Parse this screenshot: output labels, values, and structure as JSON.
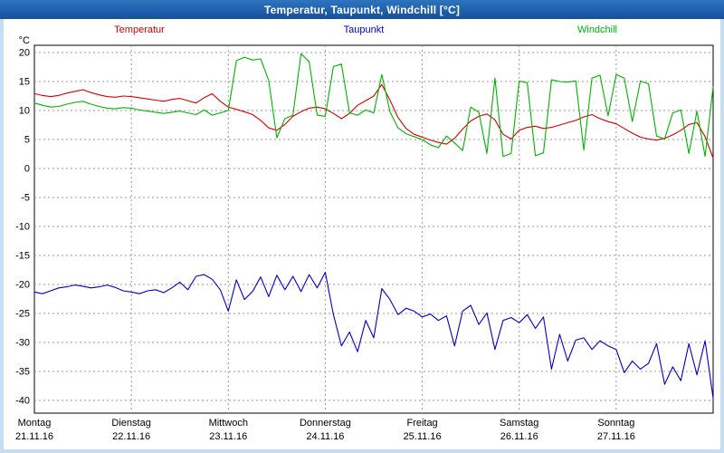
{
  "window": {
    "title": "Temperatur, Taupunkt, Windchill [°C]"
  },
  "colors": {
    "frame_background": "#c6dcf0",
    "titlebar_blue": "#1a5fae",
    "plot_background": "#ffffff",
    "grid_gray": "#989898",
    "temperatur_red": "#d40000",
    "taupunkt_blue": "#0000c8",
    "windchill_green": "#00b400"
  },
  "chart_data": {
    "type": "line",
    "title": "Temperatur, Taupunkt, Windchill [°C]",
    "ylabel": "°C",
    "ylim": [
      -40,
      20
    ],
    "ytick_step": 5,
    "grid": "dashed",
    "legend_position": "top",
    "x_unit_hours": 2,
    "x_range_days": 7,
    "x_days": [
      {
        "name": "Montag",
        "date": "21.11.16"
      },
      {
        "name": "Dienstag",
        "date": "22.11.16"
      },
      {
        "name": "Mittwoch",
        "date": "23.11.16"
      },
      {
        "name": "Donnerstag",
        "date": "24.11.16"
      },
      {
        "name": "Freitag",
        "date": "25.11.16"
      },
      {
        "name": "Samstag",
        "date": "26.11.16"
      },
      {
        "name": "Sonntag",
        "date": "27.11.16"
      }
    ],
    "series": [
      {
        "name": "Temperatur",
        "color": "#d40000",
        "values": [
          12.9,
          12.6,
          12.4,
          12.6,
          13.0,
          13.3,
          13.6,
          13.1,
          12.7,
          12.4,
          12.3,
          12.5,
          12.4,
          12.2,
          12.0,
          11.8,
          11.6,
          11.9,
          12.1,
          11.7,
          11.3,
          12.2,
          12.9,
          11.6,
          10.6,
          10.2,
          9.8,
          9.3,
          8.3,
          7.0,
          6.6,
          7.6,
          9.0,
          9.8,
          10.4,
          10.6,
          10.3,
          9.5,
          8.6,
          9.5,
          10.9,
          11.7,
          12.5,
          14.5,
          11.8,
          8.8,
          6.9,
          5.9,
          5.4,
          4.9,
          4.5,
          4.2,
          5.2,
          6.8,
          8.2,
          9.0,
          9.4,
          8.4,
          5.9,
          5.1,
          6.6,
          7.1,
          7.3,
          6.9,
          7.1,
          7.5,
          7.9,
          8.3,
          8.9,
          9.3,
          8.6,
          8.1,
          7.7,
          6.9,
          6.1,
          5.4,
          5.1,
          4.9,
          5.2,
          5.8,
          6.6,
          7.6,
          7.9,
          5.5,
          1.8
        ]
      },
      {
        "name": "Taupunkt",
        "color": "#0000c8",
        "values": [
          -21.3,
          -21.6,
          -21.1,
          -20.6,
          -20.4,
          -20.1,
          -20.3,
          -20.6,
          -20.4,
          -20.1,
          -20.5,
          -21.1,
          -21.3,
          -21.6,
          -21.1,
          -20.9,
          -21.4,
          -20.6,
          -19.6,
          -20.9,
          -18.6,
          -18.3,
          -19.1,
          -20.9,
          -24.6,
          -19.2,
          -22.6,
          -21.2,
          -18.7,
          -22.1,
          -18.4,
          -20.9,
          -18.6,
          -21.2,
          -18.3,
          -20.6,
          -17.9,
          -25.2,
          -30.6,
          -28.2,
          -31.6,
          -26.2,
          -29.2,
          -20.7,
          -22.6,
          -25.2,
          -24.1,
          -24.6,
          -25.6,
          -25.1,
          -26.2,
          -25.4,
          -30.6,
          -24.6,
          -23.6,
          -26.9,
          -24.9,
          -31.2,
          -26.2,
          -25.7,
          -26.6,
          -25.2,
          -27.6,
          -25.6,
          -34.6,
          -28.6,
          -33.2,
          -29.6,
          -29.2,
          -31.2,
          -29.7,
          -30.6,
          -31.2,
          -35.2,
          -33.2,
          -34.6,
          -33.6,
          -30.2,
          -37.2,
          -34.2,
          -36.6,
          -30.2,
          -35.6,
          -29.7,
          -39.6
        ]
      },
      {
        "name": "Windchill",
        "color": "#00b400",
        "values": [
          11.3,
          10.9,
          10.6,
          10.7,
          11.1,
          11.4,
          11.6,
          11.1,
          10.7,
          10.4,
          10.3,
          10.5,
          10.4,
          10.1,
          9.9,
          9.7,
          9.5,
          9.7,
          9.9,
          9.6,
          9.3,
          10.1,
          9.2,
          9.6,
          10.0,
          18.6,
          19.2,
          18.7,
          18.9,
          15.2,
          5.3,
          8.6,
          9.2,
          19.8,
          18.4,
          9.2,
          9.0,
          17.6,
          18.0,
          9.6,
          9.2,
          10.1,
          9.6,
          16.2,
          9.8,
          7.0,
          6.0,
          5.5,
          5.0,
          4.1,
          3.6,
          5.6,
          4.4,
          3.1,
          10.6,
          9.7,
          2.6,
          15.6,
          2.1,
          2.6,
          15.1,
          14.8,
          2.2,
          2.7,
          15.3,
          15.0,
          14.9,
          15.1,
          3.2,
          15.6,
          16.1,
          9.1,
          16.2,
          15.6,
          8.1,
          15.1,
          14.6,
          5.6,
          5.1,
          9.6,
          10.1,
          2.6,
          9.9,
          2.1,
          14.1
        ]
      }
    ]
  }
}
